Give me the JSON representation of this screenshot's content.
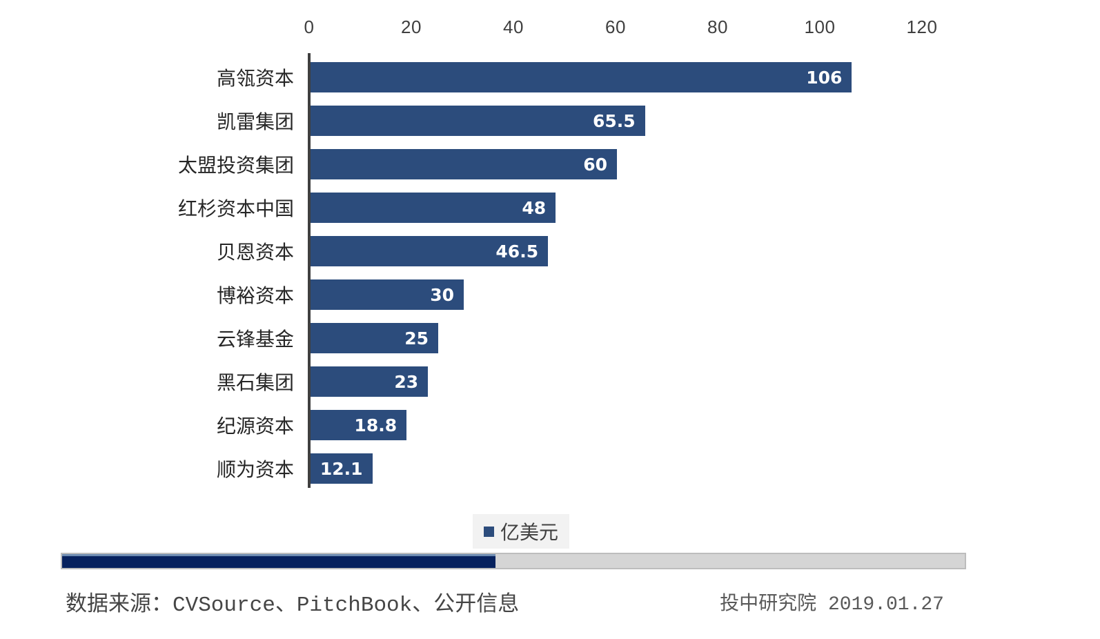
{
  "chart_data": {
    "type": "bar",
    "orientation": "horizontal",
    "title": "",
    "xlabel": "",
    "ylabel": "",
    "categories": [
      "高瓴资本",
      "凯雷集团",
      "太盟投资集团",
      "红杉资本中国",
      "贝恩资本",
      "博裕资本",
      "云锋基金",
      "黑石集团",
      "纪源资本",
      "顺为资本"
    ],
    "values": [
      106,
      65.5,
      60,
      48,
      46.5,
      30,
      25,
      23,
      18.8,
      12.1
    ],
    "value_labels": [
      "106",
      "65.5",
      "60",
      "48",
      "46.5",
      "30",
      "25",
      "23",
      "18.8",
      "12.1"
    ],
    "xlim": [
      0,
      120
    ],
    "x_ticks": [
      0,
      20,
      40,
      60,
      80,
      100,
      120
    ],
    "grid": false,
    "legend": {
      "label": "亿美元",
      "position": "bottom"
    }
  },
  "footer": {
    "source_text": "数据来源：CVSource、PitchBook、公开信息",
    "publisher": "投中研究院 2019.01.27"
  },
  "progress": {
    "percent": 48
  },
  "colors": {
    "bar": "#2C4C7C",
    "axis_line": "#3F3F3F",
    "tick_text": "#3F3F3F",
    "value_text": "#FFFFFF",
    "legend_bg": "#F2F2F2",
    "legend_swatch": "#2C4C7C",
    "progress_fill": "#07225E",
    "progress_fill_highlight": "#6D8CB2",
    "progress_track": "#D5D5D5",
    "progress_border": "#BDBDBD"
  }
}
